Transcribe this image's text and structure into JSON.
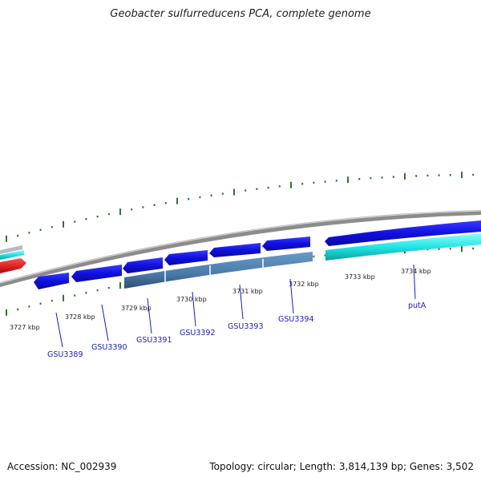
{
  "title": "Geobacter sulfurreducens PCA, complete genome",
  "footer": {
    "accession": "Accession: NC_002939",
    "summary": "Topology: circular; Length: 3,814,139 bp; Genes: 3,502"
  },
  "scale_labels": [
    "3727 kbp",
    "3728 kbp",
    "3729 kbp",
    "3730 kbp",
    "3731 kbp",
    "3732 kbp",
    "3733 kbp",
    "3734 kbp"
  ],
  "gene_labels": [
    "GSU3389",
    "GSU3390",
    "GSU3391",
    "GSU3392",
    "GSU3393",
    "GSU3394",
    "putA"
  ],
  "colors": {
    "backbone": "#8a8a8a",
    "cds": "#1414e0",
    "rna": "#4a7aa8",
    "highlight": "#22e0e0",
    "red": "#e01414",
    "tick": "#2a7a2a"
  }
}
